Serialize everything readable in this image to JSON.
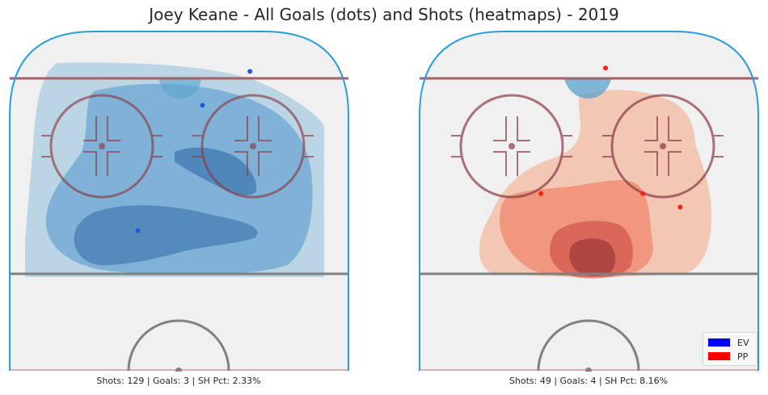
{
  "title": "Joey Keane - All Goals (dots) and Shots (heatmaps) - 2019",
  "colors": {
    "ev": "#0000ff",
    "pp": "#ff0000",
    "rink_border": "#2a9fd6",
    "blue_line": "#a0626a",
    "goal_line": "#808080",
    "rink_fill": "#f0f0f0"
  },
  "legend": {
    "position": "lower-right",
    "items": [
      {
        "label": "EV",
        "color": "#0000ff"
      },
      {
        "label": "PP",
        "color": "#ff0000"
      }
    ]
  },
  "chart_data": [
    {
      "type": "scatter",
      "subtitle": "EV",
      "caption": "Shots: 129 | Goals: 3 | SH Pct: 2.33%",
      "shots": 129,
      "goals": 3,
      "sh_pct": "2.33%",
      "heatmap_color": "#3a87c7",
      "goal_dot_color": "#1f5bd8",
      "goal_points": [
        {
          "x": 57,
          "y": 78
        },
        {
          "x": 38,
          "y": 41
        },
        {
          "x": 71,
          "y": 88
        }
      ]
    },
    {
      "type": "scatter",
      "subtitle": "PP",
      "caption": "Shots: 49 | Goals: 4 | SH Pct: 8.16%",
      "shots": 49,
      "goals": 4,
      "sh_pct": "8.16%",
      "heatmap_color": "#e8553a",
      "goal_dot_color": "#ff2010",
      "goal_points": [
        {
          "x": 55,
          "y": 89
        },
        {
          "x": 36,
          "y": 52
        },
        {
          "x": 66,
          "y": 52
        },
        {
          "x": 77,
          "y": 48
        }
      ]
    }
  ]
}
